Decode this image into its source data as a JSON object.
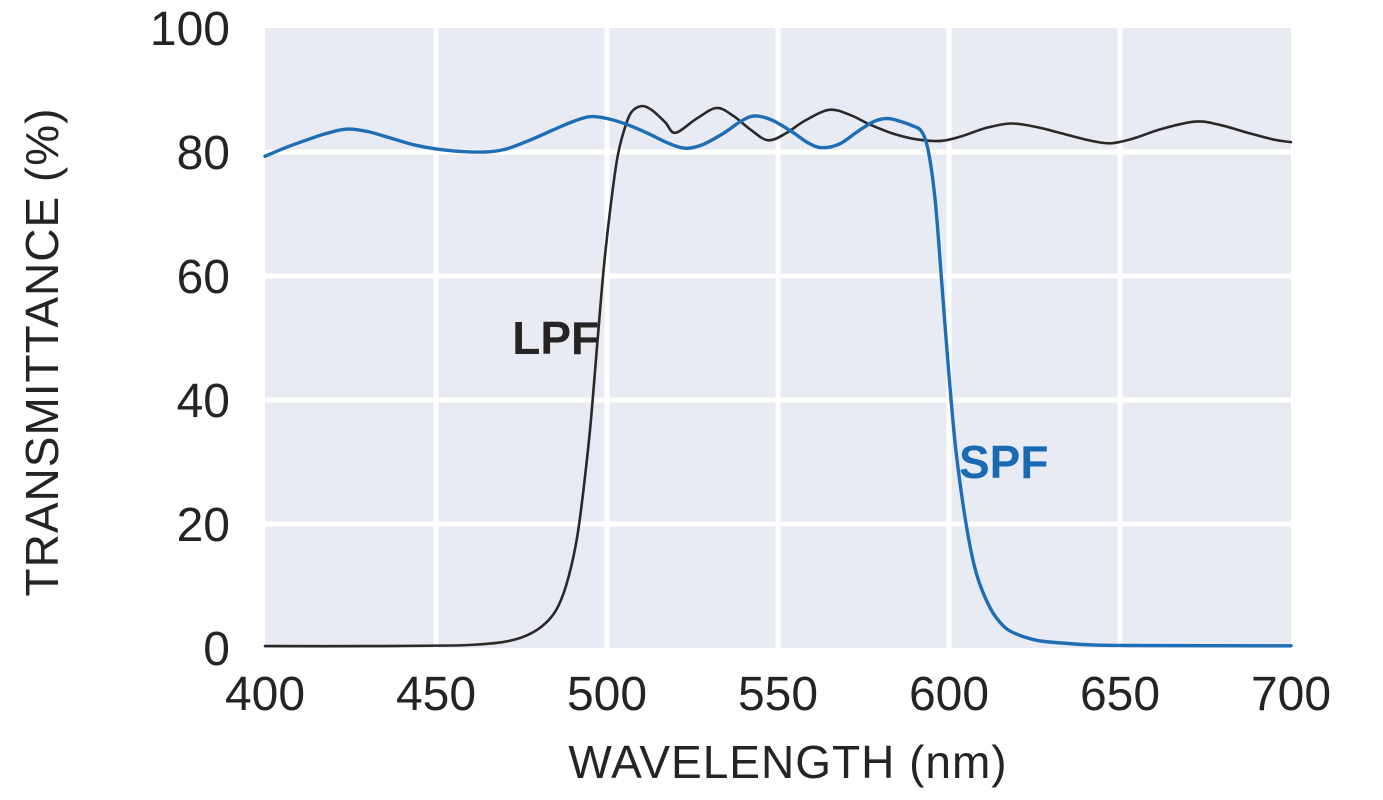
{
  "chart_data": {
    "type": "line",
    "title": "",
    "xlabel": "WAVELENGTH (nm)",
    "ylabel": "TRANSMITTANCE (%)",
    "xlim": [
      400,
      700
    ],
    "ylim": [
      0,
      100
    ],
    "x_ticks": [
      400,
      450,
      500,
      550,
      600,
      650,
      700
    ],
    "y_ticks": [
      0,
      20,
      40,
      60,
      80,
      100
    ],
    "grid": true,
    "legend_position": "inline-annotations",
    "plot_bg_color": "#e8ebf3",
    "grid_color": "#ffffff",
    "text_color": "#262324",
    "series": [
      {
        "name": "LPF",
        "color": "#2b2829",
        "label_color": "#262324",
        "stroke_width": 2.6,
        "label_pos": {
          "x": 485,
          "y": 50
        },
        "points": [
          [
            400,
            0.3
          ],
          [
            430,
            0.3
          ],
          [
            455,
            0.4
          ],
          [
            463,
            0.6
          ],
          [
            470,
            1.0
          ],
          [
            476,
            1.9
          ],
          [
            481,
            3.5
          ],
          [
            485,
            6
          ],
          [
            488,
            10
          ],
          [
            491,
            17
          ],
          [
            493,
            25
          ],
          [
            495,
            35
          ],
          [
            497,
            48
          ],
          [
            499,
            61
          ],
          [
            501,
            71
          ],
          [
            503,
            79
          ],
          [
            505,
            83.5
          ],
          [
            507,
            86.3
          ],
          [
            510,
            87.4
          ],
          [
            513,
            86.8
          ],
          [
            517,
            84.8
          ],
          [
            520,
            83.1
          ],
          [
            526,
            85.3
          ],
          [
            532,
            87.1
          ],
          [
            537,
            85.8
          ],
          [
            542,
            83.6
          ],
          [
            547,
            81.9
          ],
          [
            552,
            82.9
          ],
          [
            558,
            85.1
          ],
          [
            565,
            86.8
          ],
          [
            571,
            86.0
          ],
          [
            577,
            84.4
          ],
          [
            584,
            82.9
          ],
          [
            591,
            82.0
          ],
          [
            598,
            81.8
          ],
          [
            604,
            82.6
          ],
          [
            611,
            83.9
          ],
          [
            618,
            84.6
          ],
          [
            625,
            84.1
          ],
          [
            633,
            83.0
          ],
          [
            640,
            82.0
          ],
          [
            647,
            81.4
          ],
          [
            654,
            82.2
          ],
          [
            662,
            83.7
          ],
          [
            672,
            84.9
          ],
          [
            679,
            84.4
          ],
          [
            688,
            83.0
          ],
          [
            695,
            82.0
          ],
          [
            700,
            81.6
          ]
        ]
      },
      {
        "name": "SPF",
        "color": "#1f6eb5",
        "label_color": "#1a6ab3",
        "stroke_width": 3.4,
        "label_pos": {
          "x": 616,
          "y": 30
        },
        "points": [
          [
            400,
            79.3
          ],
          [
            406,
            80.7
          ],
          [
            412,
            81.9
          ],
          [
            418,
            83.0
          ],
          [
            424,
            83.7
          ],
          [
            430,
            83.3
          ],
          [
            437,
            82.2
          ],
          [
            444,
            81.1
          ],
          [
            450,
            80.5
          ],
          [
            457,
            80.1
          ],
          [
            464,
            80.0
          ],
          [
            470,
            80.4
          ],
          [
            477,
            81.8
          ],
          [
            484,
            83.5
          ],
          [
            490,
            84.9
          ],
          [
            495,
            85.7
          ],
          [
            500,
            85.4
          ],
          [
            506,
            84.4
          ],
          [
            512,
            83.0
          ],
          [
            518,
            81.4
          ],
          [
            523,
            80.6
          ],
          [
            528,
            81.2
          ],
          [
            534,
            83.0
          ],
          [
            539,
            84.9
          ],
          [
            543,
            85.8
          ],
          [
            548,
            85.2
          ],
          [
            554,
            83.3
          ],
          [
            559,
            81.4
          ],
          [
            563,
            80.7
          ],
          [
            568,
            81.3
          ],
          [
            573,
            83.2
          ],
          [
            578,
            84.9
          ],
          [
            582,
            85.4
          ],
          [
            586,
            84.9
          ],
          [
            589,
            84.3
          ],
          [
            592,
            83.3
          ],
          [
            594,
            80
          ],
          [
            596,
            72
          ],
          [
            598,
            58
          ],
          [
            600,
            44
          ],
          [
            602,
            32
          ],
          [
            605,
            20
          ],
          [
            608,
            12
          ],
          [
            612,
            6.5
          ],
          [
            616,
            3.5
          ],
          [
            620,
            2.2
          ],
          [
            626,
            1.2
          ],
          [
            633,
            0.8
          ],
          [
            642,
            0.5
          ],
          [
            655,
            0.4
          ],
          [
            700,
            0.35
          ]
        ]
      }
    ]
  }
}
